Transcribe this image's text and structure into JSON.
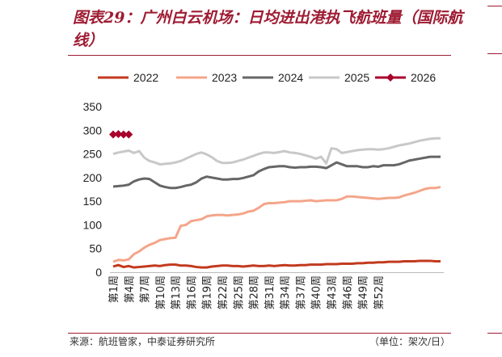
{
  "title": "图表29：广州白云机场：日均进出港执飞航班量（国际航线）",
  "source": "来源：航班管家，中泰证券研究所",
  "unit": "（单位：架次/日）",
  "chart_data": {
    "type": "line",
    "ylim": [
      0,
      350
    ],
    "yticks": [
      0,
      50,
      100,
      150,
      200,
      250,
      300,
      350
    ],
    "xlabels": [
      "第1周",
      "第4周",
      "第7周",
      "第10周",
      "第13周",
      "第16周",
      "第19周",
      "第22周",
      "第25周",
      "第28周",
      "第31周",
      "第34周",
      "第37周",
      "第40周",
      "第43周",
      "第46周",
      "第49周",
      "第52周"
    ],
    "series": [
      {
        "name": "2022",
        "color": "#c23a1e",
        "marker": "none",
        "values": [
          12,
          15,
          11,
          13,
          10,
          11,
          12,
          13,
          14,
          13,
          15,
          16,
          16,
          14,
          14,
          13,
          11,
          10,
          10,
          12,
          13,
          14,
          14,
          13,
          13,
          12,
          13,
          14,
          13,
          13,
          14,
          13,
          14,
          15,
          14,
          14,
          15,
          15,
          16,
          16,
          16,
          17,
          17,
          17,
          18,
          18,
          18,
          19,
          19,
          20,
          20,
          21,
          21,
          22,
          22,
          22,
          23,
          23,
          23,
          24,
          24,
          24,
          23,
          23
        ]
      },
      {
        "name": "2023",
        "color": "#f4a58a",
        "marker": "none",
        "values": [
          22,
          26,
          25,
          27,
          38,
          44,
          52,
          58,
          62,
          68,
          70,
          72,
          73,
          98,
          100,
          108,
          110,
          112,
          118,
          120,
          121,
          121,
          120,
          121,
          122,
          124,
          128,
          130,
          136,
          144,
          146,
          146,
          147,
          148,
          150,
          150,
          150,
          151,
          152,
          150,
          151,
          152,
          152,
          152,
          155,
          160,
          160,
          159,
          158,
          157,
          156,
          155,
          156,
          157,
          157,
          158,
          162,
          165,
          168,
          172,
          176,
          178,
          178,
          180
        ]
      },
      {
        "name": "2024",
        "color": "#666666",
        "marker": "none",
        "values": [
          181,
          182,
          183,
          185,
          192,
          196,
          198,
          197,
          190,
          183,
          180,
          178,
          178,
          180,
          183,
          185,
          190,
          198,
          202,
          200,
          198,
          196,
          196,
          197,
          197,
          199,
          202,
          205,
          213,
          218,
          222,
          223,
          224,
          224,
          222,
          221,
          222,
          222,
          223,
          223,
          222,
          220,
          226,
          232,
          228,
          224,
          224,
          224,
          222,
          222,
          224,
          223,
          226,
          226,
          226,
          228,
          232,
          236,
          238,
          240,
          242,
          244,
          244,
          244
        ]
      },
      {
        "name": "2025",
        "color": "#c8c8c8",
        "marker": "none",
        "values": [
          250,
          253,
          255,
          257,
          252,
          256,
          242,
          235,
          232,
          228,
          229,
          230,
          232,
          235,
          240,
          245,
          250,
          253,
          249,
          243,
          235,
          231,
          231,
          232,
          235,
          238,
          242,
          246,
          250,
          253,
          253,
          252,
          254,
          256,
          253,
          252,
          250,
          247,
          244,
          240,
          244,
          230,
          262,
          260,
          252,
          254,
          256,
          258,
          259,
          260,
          260,
          259,
          260,
          262,
          265,
          268,
          270,
          272,
          275,
          278,
          280,
          282,
          283,
          283
        ]
      },
      {
        "name": "2026",
        "color": "#a8002c",
        "marker": "diamond",
        "values": [
          291,
          292,
          291,
          291
        ]
      }
    ]
  }
}
